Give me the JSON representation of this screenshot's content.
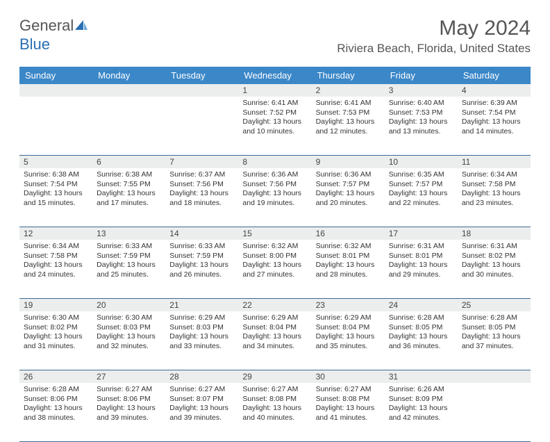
{
  "logo": {
    "part1": "General",
    "part2": "Blue"
  },
  "title": "May 2024",
  "location": "Riviera Beach, Florida, United States",
  "colors": {
    "header_bg": "#3b87c8",
    "header_text": "#ffffff",
    "daynum_bg": "#eceded",
    "border": "#3b6b94",
    "logo_blue": "#2a6fb3",
    "text": "#333333",
    "title_color": "#555555"
  },
  "day_names": [
    "Sunday",
    "Monday",
    "Tuesday",
    "Wednesday",
    "Thursday",
    "Friday",
    "Saturday"
  ],
  "weeks": [
    [
      {
        "n": "",
        "lines": [
          "",
          "",
          "",
          ""
        ]
      },
      {
        "n": "",
        "lines": [
          "",
          "",
          "",
          ""
        ]
      },
      {
        "n": "",
        "lines": [
          "",
          "",
          "",
          ""
        ]
      },
      {
        "n": "1",
        "lines": [
          "Sunrise: 6:41 AM",
          "Sunset: 7:52 PM",
          "Daylight: 13 hours",
          "and 10 minutes."
        ]
      },
      {
        "n": "2",
        "lines": [
          "Sunrise: 6:41 AM",
          "Sunset: 7:53 PM",
          "Daylight: 13 hours",
          "and 12 minutes."
        ]
      },
      {
        "n": "3",
        "lines": [
          "Sunrise: 6:40 AM",
          "Sunset: 7:53 PM",
          "Daylight: 13 hours",
          "and 13 minutes."
        ]
      },
      {
        "n": "4",
        "lines": [
          "Sunrise: 6:39 AM",
          "Sunset: 7:54 PM",
          "Daylight: 13 hours",
          "and 14 minutes."
        ]
      }
    ],
    [
      {
        "n": "5",
        "lines": [
          "Sunrise: 6:38 AM",
          "Sunset: 7:54 PM",
          "Daylight: 13 hours",
          "and 15 minutes."
        ]
      },
      {
        "n": "6",
        "lines": [
          "Sunrise: 6:38 AM",
          "Sunset: 7:55 PM",
          "Daylight: 13 hours",
          "and 17 minutes."
        ]
      },
      {
        "n": "7",
        "lines": [
          "Sunrise: 6:37 AM",
          "Sunset: 7:56 PM",
          "Daylight: 13 hours",
          "and 18 minutes."
        ]
      },
      {
        "n": "8",
        "lines": [
          "Sunrise: 6:36 AM",
          "Sunset: 7:56 PM",
          "Daylight: 13 hours",
          "and 19 minutes."
        ]
      },
      {
        "n": "9",
        "lines": [
          "Sunrise: 6:36 AM",
          "Sunset: 7:57 PM",
          "Daylight: 13 hours",
          "and 20 minutes."
        ]
      },
      {
        "n": "10",
        "lines": [
          "Sunrise: 6:35 AM",
          "Sunset: 7:57 PM",
          "Daylight: 13 hours",
          "and 22 minutes."
        ]
      },
      {
        "n": "11",
        "lines": [
          "Sunrise: 6:34 AM",
          "Sunset: 7:58 PM",
          "Daylight: 13 hours",
          "and 23 minutes."
        ]
      }
    ],
    [
      {
        "n": "12",
        "lines": [
          "Sunrise: 6:34 AM",
          "Sunset: 7:58 PM",
          "Daylight: 13 hours",
          "and 24 minutes."
        ]
      },
      {
        "n": "13",
        "lines": [
          "Sunrise: 6:33 AM",
          "Sunset: 7:59 PM",
          "Daylight: 13 hours",
          "and 25 minutes."
        ]
      },
      {
        "n": "14",
        "lines": [
          "Sunrise: 6:33 AM",
          "Sunset: 7:59 PM",
          "Daylight: 13 hours",
          "and 26 minutes."
        ]
      },
      {
        "n": "15",
        "lines": [
          "Sunrise: 6:32 AM",
          "Sunset: 8:00 PM",
          "Daylight: 13 hours",
          "and 27 minutes."
        ]
      },
      {
        "n": "16",
        "lines": [
          "Sunrise: 6:32 AM",
          "Sunset: 8:01 PM",
          "Daylight: 13 hours",
          "and 28 minutes."
        ]
      },
      {
        "n": "17",
        "lines": [
          "Sunrise: 6:31 AM",
          "Sunset: 8:01 PM",
          "Daylight: 13 hours",
          "and 29 minutes."
        ]
      },
      {
        "n": "18",
        "lines": [
          "Sunrise: 6:31 AM",
          "Sunset: 8:02 PM",
          "Daylight: 13 hours",
          "and 30 minutes."
        ]
      }
    ],
    [
      {
        "n": "19",
        "lines": [
          "Sunrise: 6:30 AM",
          "Sunset: 8:02 PM",
          "Daylight: 13 hours",
          "and 31 minutes."
        ]
      },
      {
        "n": "20",
        "lines": [
          "Sunrise: 6:30 AM",
          "Sunset: 8:03 PM",
          "Daylight: 13 hours",
          "and 32 minutes."
        ]
      },
      {
        "n": "21",
        "lines": [
          "Sunrise: 6:29 AM",
          "Sunset: 8:03 PM",
          "Daylight: 13 hours",
          "and 33 minutes."
        ]
      },
      {
        "n": "22",
        "lines": [
          "Sunrise: 6:29 AM",
          "Sunset: 8:04 PM",
          "Daylight: 13 hours",
          "and 34 minutes."
        ]
      },
      {
        "n": "23",
        "lines": [
          "Sunrise: 6:29 AM",
          "Sunset: 8:04 PM",
          "Daylight: 13 hours",
          "and 35 minutes."
        ]
      },
      {
        "n": "24",
        "lines": [
          "Sunrise: 6:28 AM",
          "Sunset: 8:05 PM",
          "Daylight: 13 hours",
          "and 36 minutes."
        ]
      },
      {
        "n": "25",
        "lines": [
          "Sunrise: 6:28 AM",
          "Sunset: 8:05 PM",
          "Daylight: 13 hours",
          "and 37 minutes."
        ]
      }
    ],
    [
      {
        "n": "26",
        "lines": [
          "Sunrise: 6:28 AM",
          "Sunset: 8:06 PM",
          "Daylight: 13 hours",
          "and 38 minutes."
        ]
      },
      {
        "n": "27",
        "lines": [
          "Sunrise: 6:27 AM",
          "Sunset: 8:06 PM",
          "Daylight: 13 hours",
          "and 39 minutes."
        ]
      },
      {
        "n": "28",
        "lines": [
          "Sunrise: 6:27 AM",
          "Sunset: 8:07 PM",
          "Daylight: 13 hours",
          "and 39 minutes."
        ]
      },
      {
        "n": "29",
        "lines": [
          "Sunrise: 6:27 AM",
          "Sunset: 8:08 PM",
          "Daylight: 13 hours",
          "and 40 minutes."
        ]
      },
      {
        "n": "30",
        "lines": [
          "Sunrise: 6:27 AM",
          "Sunset: 8:08 PM",
          "Daylight: 13 hours",
          "and 41 minutes."
        ]
      },
      {
        "n": "31",
        "lines": [
          "Sunrise: 6:26 AM",
          "Sunset: 8:09 PM",
          "Daylight: 13 hours",
          "and 42 minutes."
        ]
      },
      {
        "n": "",
        "lines": [
          "",
          "",
          "",
          ""
        ]
      }
    ]
  ]
}
